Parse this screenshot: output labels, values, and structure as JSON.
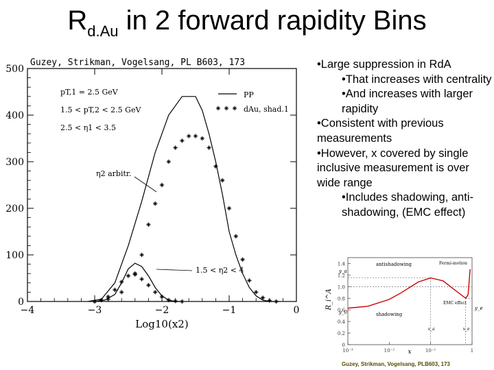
{
  "title": {
    "main": "R",
    "sub": "d.Au",
    "rest": " in 2 forward rapidity Bins"
  },
  "citation": "Guzey, Strikman, Vogelsang, PL B603, 173",
  "bullets": [
    {
      "level": 1,
      "text": "•Large suppression in RdA"
    },
    {
      "level": 2,
      "text": "•That increases with centrality"
    },
    {
      "level": 2,
      "text": "•And increases with larger rapidity"
    },
    {
      "level": 1,
      "text": "•Consistent with previous measurements"
    },
    {
      "level": 1,
      "text": "•However, x covered by single inclusive measurement is over wide range"
    },
    {
      "level": 2,
      "text": "•Includes shadowing, anti-shadowing, (EMC effect)"
    }
  ],
  "chart_data": [
    {
      "type": "line",
      "xlabel": "Log10(x2)",
      "xlim": [
        -4,
        0
      ],
      "ylim": [
        0,
        500
      ],
      "xticks": [
        "−4",
        "−3",
        "−2",
        "−1",
        "0"
      ],
      "yticks": [
        "0",
        "100",
        "200",
        "300",
        "400",
        "500"
      ],
      "legend": [
        {
          "label": "PP",
          "style": "line"
        },
        {
          "label": "dAu, shad.1",
          "style": "star-markers"
        }
      ],
      "annotations": [
        "pT,1 = 2.5 GeV",
        "1.5 < pT,2 < 2.5 GeV",
        "2.5 < η1 < 3.5",
        "η2 arbitr.",
        "1.5 < η2 < 4"
      ],
      "series": [
        {
          "name": "PP",
          "x": [
            -3.1,
            -2.9,
            -2.7,
            -2.5,
            -2.3,
            -2.1,
            -1.9,
            -1.7,
            -1.5,
            -1.4,
            -1.3,
            -1.2,
            -1.1,
            -1.0,
            -0.9,
            -0.8,
            -0.7,
            -0.6,
            -0.5,
            -0.4,
            -0.3,
            -0.25
          ],
          "y": [
            0,
            5,
            40,
            120,
            215,
            320,
            400,
            440,
            440,
            410,
            360,
            300,
            230,
            150,
            100,
            60,
            30,
            12,
            3,
            0,
            0,
            0
          ]
        },
        {
          "name": "dAu, shad.1",
          "x": [
            -3.0,
            -2.8,
            -2.6,
            -2.4,
            -2.3,
            -2.2,
            -2.1,
            -2.0,
            -1.9,
            -1.8,
            -1.7,
            -1.6,
            -1.5,
            -1.4,
            -1.3,
            -1.2,
            -1.1,
            -1.0,
            -0.9,
            -0.8,
            -0.7,
            -0.6,
            -0.5,
            -0.4,
            -0.3
          ],
          "y": [
            0,
            5,
            20,
            60,
            100,
            165,
            210,
            250,
            300,
            330,
            345,
            355,
            355,
            350,
            330,
            290,
            260,
            200,
            140,
            90,
            45,
            20,
            8,
            2,
            0
          ]
        },
        {
          "name": "PP 1.5 < η2 < 4",
          "x": [
            -3.0,
            -2.85,
            -2.7,
            -2.6,
            -2.5,
            -2.4,
            -2.3,
            -2.2,
            -2.1,
            -2.0,
            -1.9,
            -1.8,
            -1.7
          ],
          "y": [
            0,
            3,
            15,
            40,
            70,
            82,
            75,
            55,
            30,
            12,
            3,
            0,
            0
          ]
        },
        {
          "name": "dAu 1.5 < η2 < 4",
          "x": [
            -3.0,
            -2.9,
            -2.8,
            -2.7,
            -2.6,
            -2.5,
            -2.4,
            -2.3,
            -2.2,
            -2.1,
            -2.0,
            -1.9,
            -1.8,
            -1.7
          ],
          "y": [
            0,
            3,
            10,
            25,
            42,
            55,
            58,
            48,
            35,
            20,
            10,
            3,
            1,
            0
          ]
        }
      ]
    },
    {
      "type": "line",
      "xlabel": "x",
      "ylabel": "R_i^A",
      "xscale": "log",
      "xlim": [
        0.001,
        1
      ],
      "ylim": [
        0,
        1.5
      ],
      "xticks": [
        "10⁻³",
        "10⁻²",
        "10⁻¹",
        "1"
      ],
      "yticks": [
        "0",
        "0.2",
        "0.4",
        "0.6",
        "0.8",
        "1.0",
        "1.2",
        "1.4"
      ],
      "annotations": [
        "antishadowing",
        "Fermi-motion",
        "y_a",
        "y_0",
        "shadowing",
        "EMC effect",
        "y_e",
        "x_a",
        "x_e"
      ],
      "series": [
        {
          "name": "R",
          "x": [
            0.001,
            0.003,
            0.01,
            0.02,
            0.05,
            0.1,
            0.2,
            0.3,
            0.5,
            0.7,
            0.8,
            0.9
          ],
          "y": [
            0.63,
            0.66,
            0.78,
            0.9,
            1.08,
            1.15,
            1.1,
            1.0,
            0.88,
            0.8,
            0.86,
            1.3
          ]
        }
      ],
      "citation": "Guzey, Strikman, Vogelsang, PLB603, 173"
    }
  ]
}
